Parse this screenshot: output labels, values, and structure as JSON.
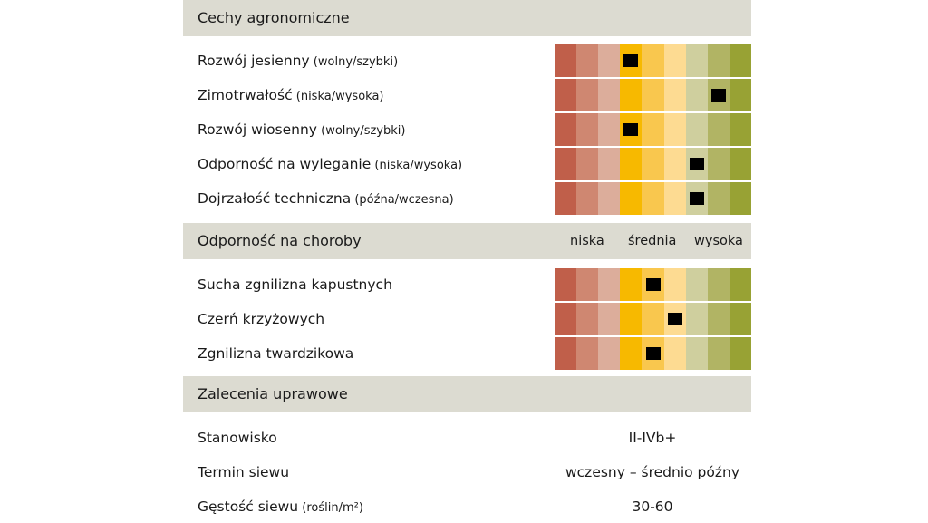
{
  "palette": [
    "#c05f4a",
    "#cf8771",
    "#dcad9b",
    "#f7b900",
    "#f9c74e",
    "#fddb92",
    "#cfcf9e",
    "#b1b464",
    "#98a234"
  ],
  "chart_data": {
    "type": "table",
    "scale_levels": 9,
    "sections": [
      {
        "title": "Cechy agronomiczne",
        "rows": [
          {
            "label": "Rozwój jesienny",
            "sub": "(wolny/szybki)",
            "value": 4
          },
          {
            "label": "Zimotrwałość",
            "sub": "(niska/wysoka)",
            "value": 8
          },
          {
            "label": "Rozwój wiosenny",
            "sub": "(wolny/szybki)",
            "value": 4
          },
          {
            "label": "Odporność na wyleganie",
            "sub": "(niska/wysoka)",
            "value": 7
          },
          {
            "label": "Dojrzałość techniczna",
            "sub": "(późna/wczesna)",
            "value": 7
          }
        ]
      },
      {
        "title": "Odporność na choroby",
        "levels": [
          "niska",
          "średnia",
          "wysoka"
        ],
        "rows": [
          {
            "label": "Sucha zgnilizna kapustnych",
            "sub": "",
            "value": 5
          },
          {
            "label": "Czerń krzyżowych",
            "sub": "",
            "value": 6
          },
          {
            "label": "Zgnilizna twardzikowa",
            "sub": "",
            "value": 5
          }
        ]
      }
    ]
  },
  "recommendations": {
    "title": "Zalecenia uprawowe",
    "rows": [
      {
        "label": "Stanowisko",
        "sub": "",
        "value": "II-IVb+"
      },
      {
        "label": "Termin siewu",
        "sub": "",
        "value": "wczesny – średnio późny"
      },
      {
        "label": "Gęstość siewu",
        "sub": "(roślin/m²)",
        "value": "30-60"
      }
    ]
  }
}
